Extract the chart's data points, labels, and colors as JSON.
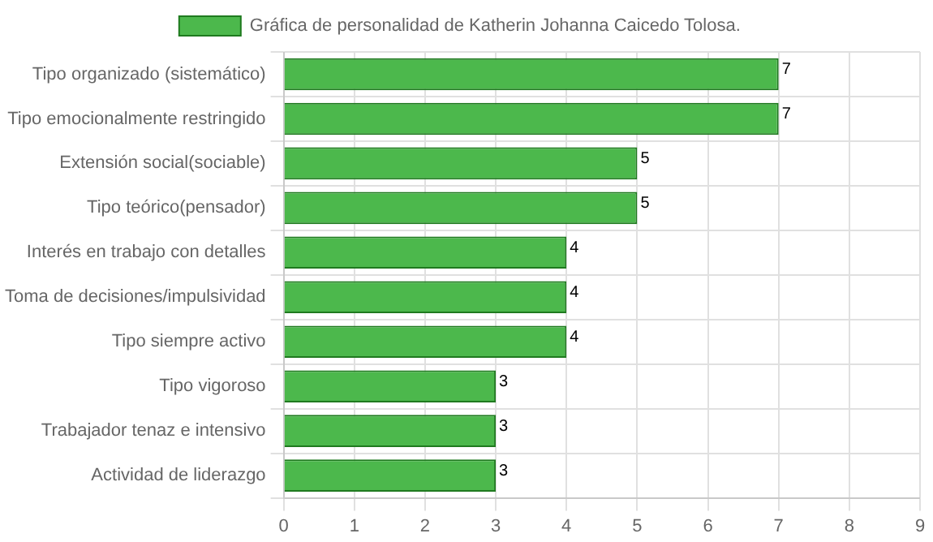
{
  "chart_data": {
    "type": "bar",
    "orientation": "horizontal",
    "categories": [
      "Tipo organizado (sistemático)",
      "Tipo emocionalmente restringido",
      "Extensión social(sociable)",
      "Tipo teórico(pensador)",
      "Interés en trabajo con detalles",
      "Toma de decisiones/impulsividad",
      "Tipo siempre activo",
      "Tipo vigoroso",
      "Trabajador tenaz e intensivo",
      "Actividad de liderazgo"
    ],
    "series": [
      {
        "name": "Gráfica de personalidad de Katherin Johanna Caicedo Tolosa.",
        "color": "#4cb84c",
        "values": [
          7,
          7,
          5,
          5,
          4,
          4,
          4,
          3,
          3,
          3
        ]
      }
    ],
    "xlim": [
      0,
      9
    ],
    "xticks": [
      0,
      1,
      2,
      3,
      4,
      5,
      6,
      7,
      8,
      9
    ],
    "grid": true,
    "legend": "top",
    "data_labels": true
  }
}
